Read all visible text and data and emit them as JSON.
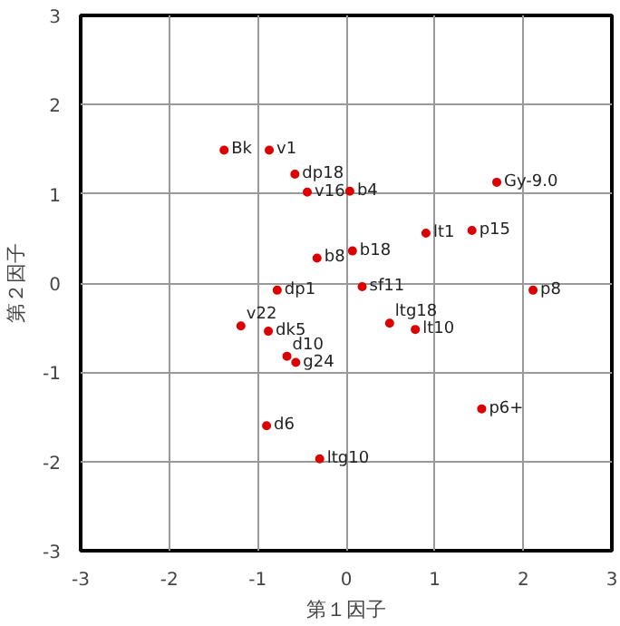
{
  "chart_data": {
    "type": "scatter",
    "xlabel": "第１因子",
    "ylabel": "第２因子",
    "xlim": [
      -3,
      3
    ],
    "ylim": [
      -3,
      3
    ],
    "xticks": [
      -3,
      -2,
      -1,
      0,
      1,
      2,
      3
    ],
    "yticks": [
      -3,
      -2,
      -1,
      0,
      1,
      2,
      3
    ],
    "grid": true,
    "marker": "circle",
    "x": [
      -1.38,
      -0.87,
      -0.58,
      -0.44,
      0.04,
      -0.33,
      0.07,
      -0.78,
      0.18,
      1.7,
      0.9,
      1.42,
      2.11,
      0.49,
      0.78,
      1.53,
      -1.19,
      -0.88,
      -0.67,
      -0.57,
      -0.9,
      -0.3
    ],
    "series": [
      {
        "color": "#dd0000",
        "values": [
          1.49,
          1.49,
          1.22,
          1.02,
          1.03,
          0.28,
          0.36,
          -0.08,
          -0.04,
          1.13,
          0.56,
          0.59,
          -0.08,
          -0.45,
          -0.52,
          -1.41,
          -0.48,
          -0.54,
          -0.82,
          -0.89,
          -1.6,
          -1.97
        ]
      }
    ],
    "annotations": [
      {
        "text": "Bk",
        "x": -1.38,
        "y": 1.49
      },
      {
        "text": "v1",
        "x": -0.87,
        "y": 1.49
      },
      {
        "text": "dp18",
        "x": -0.58,
        "y": 1.22
      },
      {
        "text": "v16",
        "x": -0.44,
        "y": 1.02
      },
      {
        "text": "b4",
        "x": 0.04,
        "y": 1.03
      },
      {
        "text": "b8",
        "x": -0.33,
        "y": 0.28
      },
      {
        "text": "b18",
        "x": 0.07,
        "y": 0.36
      },
      {
        "text": "dp1",
        "x": -0.78,
        "y": -0.08
      },
      {
        "text": "sf11",
        "x": 0.18,
        "y": -0.04
      },
      {
        "text": "Gy-9.0",
        "x": 1.7,
        "y": 1.13
      },
      {
        "text": "lt1",
        "x": 0.9,
        "y": 0.56
      },
      {
        "text": "p15",
        "x": 1.42,
        "y": 0.59
      },
      {
        "text": "p8",
        "x": 2.11,
        "y": -0.08
      },
      {
        "text": "ltg18",
        "x": 0.49,
        "y": -0.45
      },
      {
        "text": "lt10",
        "x": 0.78,
        "y": -0.52
      },
      {
        "text": "p6+",
        "x": 1.53,
        "y": -1.41
      },
      {
        "text": "v22",
        "x": -1.19,
        "y": -0.48
      },
      {
        "text": "dk5",
        "x": -0.88,
        "y": -0.54
      },
      {
        "text": "d10",
        "x": -0.67,
        "y": -0.82
      },
      {
        "text": "g24",
        "x": -0.57,
        "y": -0.89
      },
      {
        "text": "d6",
        "x": -0.9,
        "y": -1.6
      },
      {
        "text": "ltg10",
        "x": -0.3,
        "y": -1.97
      }
    ]
  }
}
